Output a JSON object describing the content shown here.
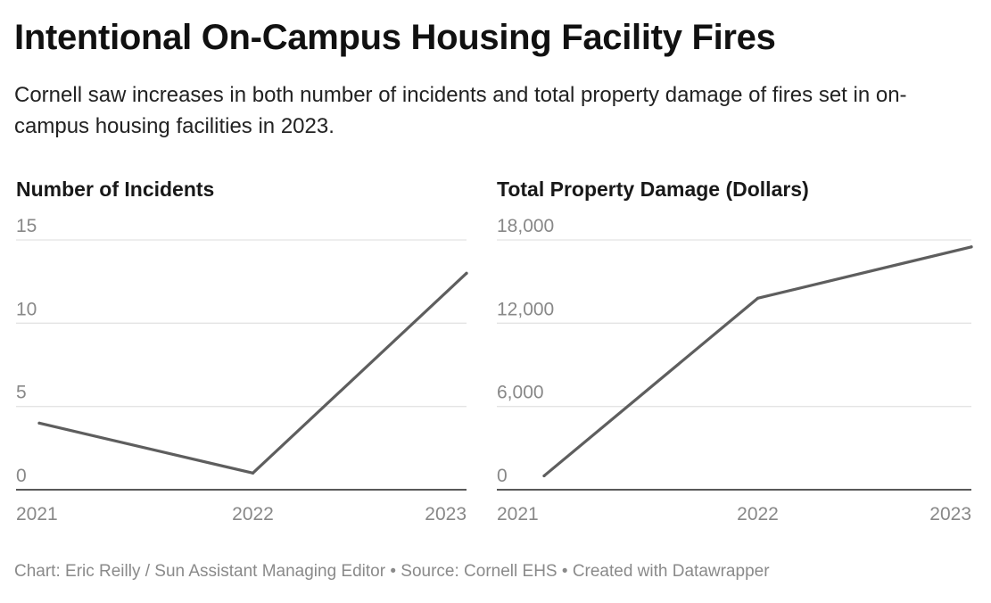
{
  "title": "Intentional On-Campus Housing Facility Fires",
  "subtitle": "Cornell saw increases in both number of incidents and total property damage of fires set in on-campus housing facilities in 2023.",
  "footer": {
    "chart_credit": "Chart: Eric Reilly / Sun Assistant Managing Editor",
    "separator": "•",
    "source": "Source: Cornell EHS",
    "tool": "Created with Datawrapper"
  },
  "colors": {
    "line": "#5e5e5e",
    "grid": "#e4e4e4",
    "axis": "#222222",
    "tick_text": "#888888"
  },
  "chart_data": [
    {
      "type": "line",
      "title": "Number of Incidents",
      "x": [
        "2021",
        "2022",
        "2023"
      ],
      "values": [
        4,
        1,
        13
      ],
      "ylim": [
        0,
        15
      ],
      "yticks": [
        0,
        5,
        10,
        15
      ],
      "ytick_labels": [
        "0",
        "5",
        "10",
        "15"
      ],
      "grid": true
    },
    {
      "type": "line",
      "title": "Total Property Damage (Dollars)",
      "x": [
        "2021",
        "2022",
        "2023"
      ],
      "values": [
        1000,
        13800,
        17500
      ],
      "ylim": [
        0,
        18000
      ],
      "yticks": [
        0,
        6000,
        12000,
        18000
      ],
      "ytick_labels": [
        "0",
        "6,000",
        "12,000",
        "18,000"
      ],
      "grid": true
    }
  ]
}
